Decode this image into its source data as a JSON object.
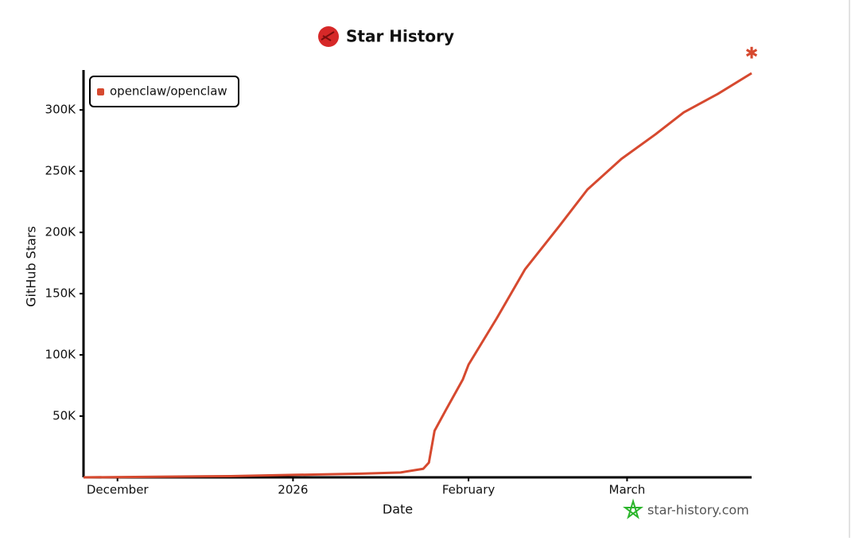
{
  "chart_data": {
    "type": "line",
    "title": "Star History",
    "xlabel": "Date",
    "ylabel": "GitHub Stars",
    "watermark": "star-history.com",
    "x": [
      0,
      13,
      26,
      37,
      49,
      56,
      60,
      61,
      62,
      64,
      67,
      68,
      73,
      78,
      84,
      89,
      95,
      101,
      106,
      112,
      118
    ],
    "series": [
      {
        "name": "openclaw/openclaw",
        "color": "#d6492f",
        "values": [
          0,
          500,
          1000,
          2000,
          3000,
          4000,
          7000,
          12000,
          38000,
          55000,
          80000,
          92000,
          130000,
          170000,
          205000,
          235000,
          260000,
          280000,
          298000,
          313000,
          330000
        ]
      }
    ],
    "xlim": [
      0,
      118
    ],
    "xticks": [
      {
        "value": 6,
        "label": "December"
      },
      {
        "value": 37,
        "label": "2026"
      },
      {
        "value": 68,
        "label": "February"
      },
      {
        "value": 96,
        "label": "March"
      }
    ],
    "ylim": [
      0,
      330000
    ],
    "yticks": [
      {
        "value": 50000,
        "label": "50K"
      },
      {
        "value": 100000,
        "label": "100K"
      },
      {
        "value": 150000,
        "label": "150K"
      },
      {
        "value": 200000,
        "label": "200K"
      },
      {
        "value": 250000,
        "label": "250K"
      },
      {
        "value": 300000,
        "label": "300K"
      }
    ],
    "legend": "top-left"
  }
}
